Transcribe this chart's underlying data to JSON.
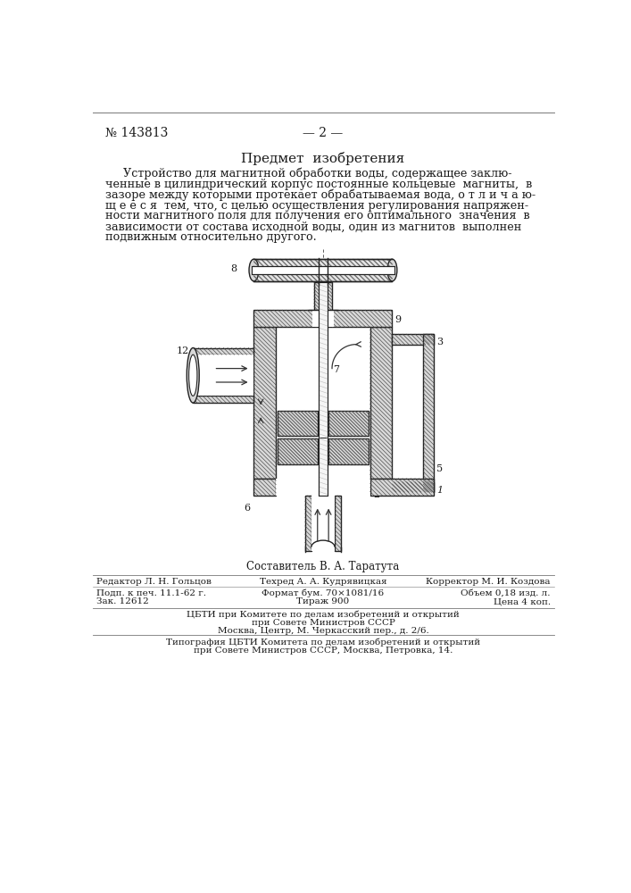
{
  "page_number": "№ 143813",
  "page_dash": "— 2 —",
  "section_title": "Предмет  изобретения",
  "body_text_lines": [
    "     Устройство для магнитной обработки воды, содержащее заклю-",
    "ченные в цилиндрический корпус постоянные кольцевые  магниты,  в",
    "зазоре между которыми протекает обрабатываемая вода, о т л и ч а ю-",
    "щ е е с я  тем, что, с целью осуществления регулирования напряжен-",
    "ности магнитного поля для получения его оптимального  значения  в",
    "зависимости от состава исходной воды, один из магнитов  выполнен",
    "подвижным относительно другого."
  ],
  "composer_line": "Составитель В. А. Таратута",
  "editor_line": "Редактор Л. Н. Гольцов",
  "tech_line": "Техред А. А. Кудрявицкая",
  "corrector_line": "Корректор М. И. Коздова",
  "print_line": "Подп. к печ. 11.1-62 г.",
  "format_line": "Формат бум. 70×1081/16",
  "volume_line": "Объем 0,18 изд. л.",
  "order_line": "Зак. 12612",
  "circulation_line": "Тираж 900",
  "price_line": "Цена 4 коп.",
  "publisher_lines": [
    "ЦБТИ при Комитете по делам изобретений и открытий",
    "при Совете Министров СССР",
    "Москва, Центр, М. Черкасский пер., д. 2/6."
  ],
  "typography_lines": [
    "Типография ЦБТИ Комитета по делам изобретений и открытий",
    "при Совете Министров СССР, Москва, Петровка, 14."
  ],
  "bg_color": "#ffffff",
  "text_color": "#1a1a1a"
}
